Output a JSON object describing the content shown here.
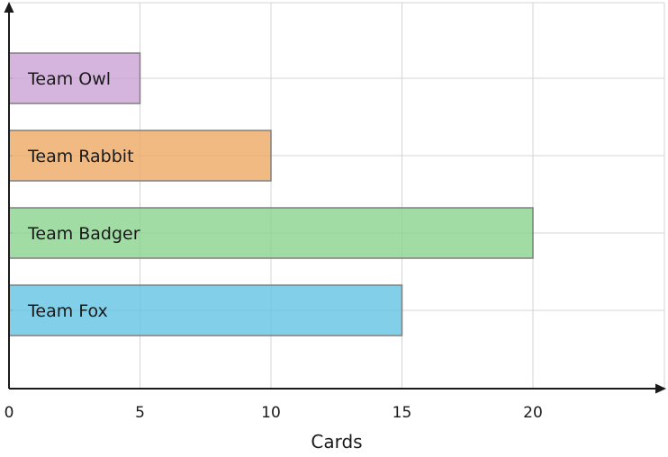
{
  "chart_data": {
    "type": "bar",
    "orientation": "horizontal",
    "categories": [
      "Team Fox",
      "Team Badger",
      "Team Rabbit",
      "Team Owl"
    ],
    "values": [
      15,
      20,
      10,
      5
    ],
    "colors": [
      "#62c3e3",
      "#8ad38f",
      "#efa964",
      "#cba3d6"
    ],
    "xlabel": "Cards",
    "ylabel": "",
    "title": "",
    "xticks": [
      0,
      5,
      10,
      15,
      20
    ],
    "xlim": [
      0,
      25
    ],
    "grid": true,
    "labels_inside_bars": true
  }
}
